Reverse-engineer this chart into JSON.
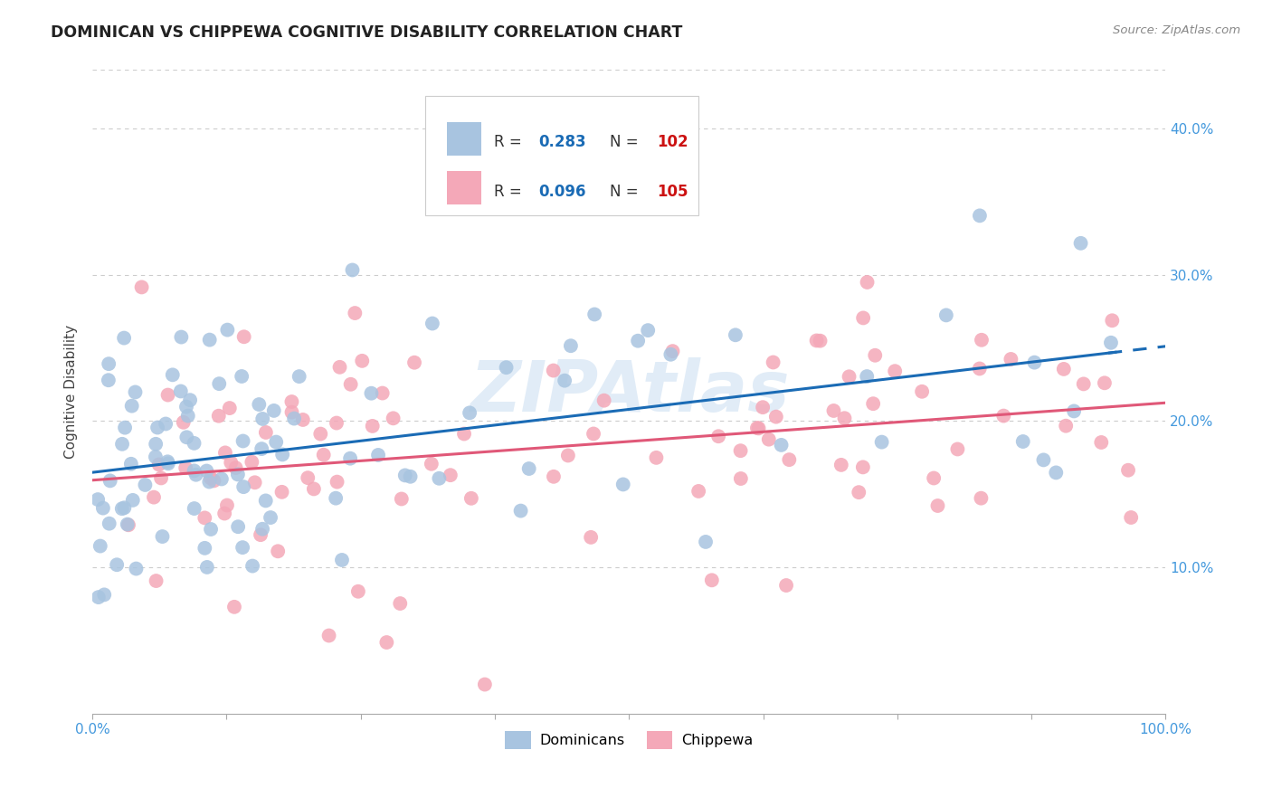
{
  "title": "DOMINICAN VS CHIPPEWA COGNITIVE DISABILITY CORRELATION CHART",
  "source": "Source: ZipAtlas.com",
  "ylabel": "Cognitive Disability",
  "xlim": [
    0.0,
    1.0
  ],
  "ylim": [
    0.0,
    0.44
  ],
  "yticks": [
    0.1,
    0.2,
    0.3,
    0.4
  ],
  "ytick_labels": [
    "10.0%",
    "20.0%",
    "30.0%",
    "40.0%"
  ],
  "dominican_R": 0.283,
  "dominican_N": 102,
  "chippewa_R": 0.096,
  "chippewa_N": 105,
  "dominican_color": "#a8c4e0",
  "chippewa_color": "#f4a8b8",
  "dominican_line_color": "#1a6bb5",
  "chippewa_line_color": "#e05878",
  "legend_label_1": "Dominicans",
  "legend_label_2": "Chippewa",
  "watermark": "ZIPAtlas",
  "dom_intercept": 0.172,
  "dom_slope": 0.068,
  "chip_intercept": 0.175,
  "chip_slope": 0.025,
  "dom_noise_std": 0.048,
  "chip_noise_std": 0.055,
  "dom_seed": 12,
  "chip_seed": 99,
  "title_color": "#222222",
  "source_color": "#888888",
  "tick_color": "#4499dd",
  "ylabel_color": "#444444",
  "grid_color": "#cccccc",
  "legend_edge_color": "#cccccc",
  "watermark_color": "#bdd6ee",
  "dot_size": 130,
  "line_width": 2.2
}
